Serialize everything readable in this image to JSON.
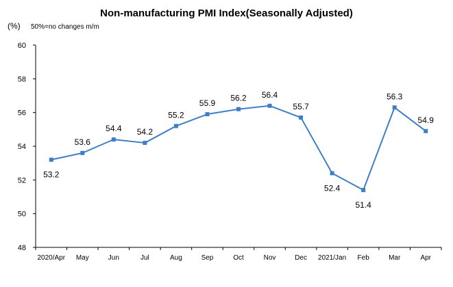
{
  "chart_data": {
    "type": "line",
    "title": "Non-manufacturing PMI Index(Seasonally Adjusted)",
    "note": "50%=no changes  m/m",
    "unit": "(%)",
    "categories": [
      "2020/Apr",
      "May",
      "Jun",
      "Jul",
      "Aug",
      "Sep",
      "Oct",
      "Nov",
      "Dec",
      "2021/Jan",
      "Feb",
      "Mar",
      "Apr"
    ],
    "values": [
      53.2,
      53.6,
      54.4,
      54.2,
      55.2,
      55.9,
      56.2,
      56.4,
      55.7,
      52.4,
      51.4,
      56.3,
      54.9
    ],
    "data_labels": [
      "53.2",
      "53.6",
      "54.4",
      "54.2",
      "55.2",
      "55.9",
      "56.2",
      "56.4",
      "55.7",
      "52.4",
      "51.4",
      "56.3",
      "54.9"
    ],
    "label_position": [
      "below",
      "above",
      "above",
      "above",
      "above",
      "above",
      "above",
      "above",
      "above",
      "below",
      "below",
      "above",
      "above"
    ],
    "yticks": [
      48,
      50,
      52,
      54,
      56,
      58,
      60
    ],
    "ylim": [
      48,
      60
    ],
    "grid": false,
    "legend": "none",
    "colors": {
      "line": "#3d7ec7",
      "marker": "#3d7ec7",
      "axis": "#000000",
      "text": "#000000",
      "background": "#ffffff"
    }
  }
}
